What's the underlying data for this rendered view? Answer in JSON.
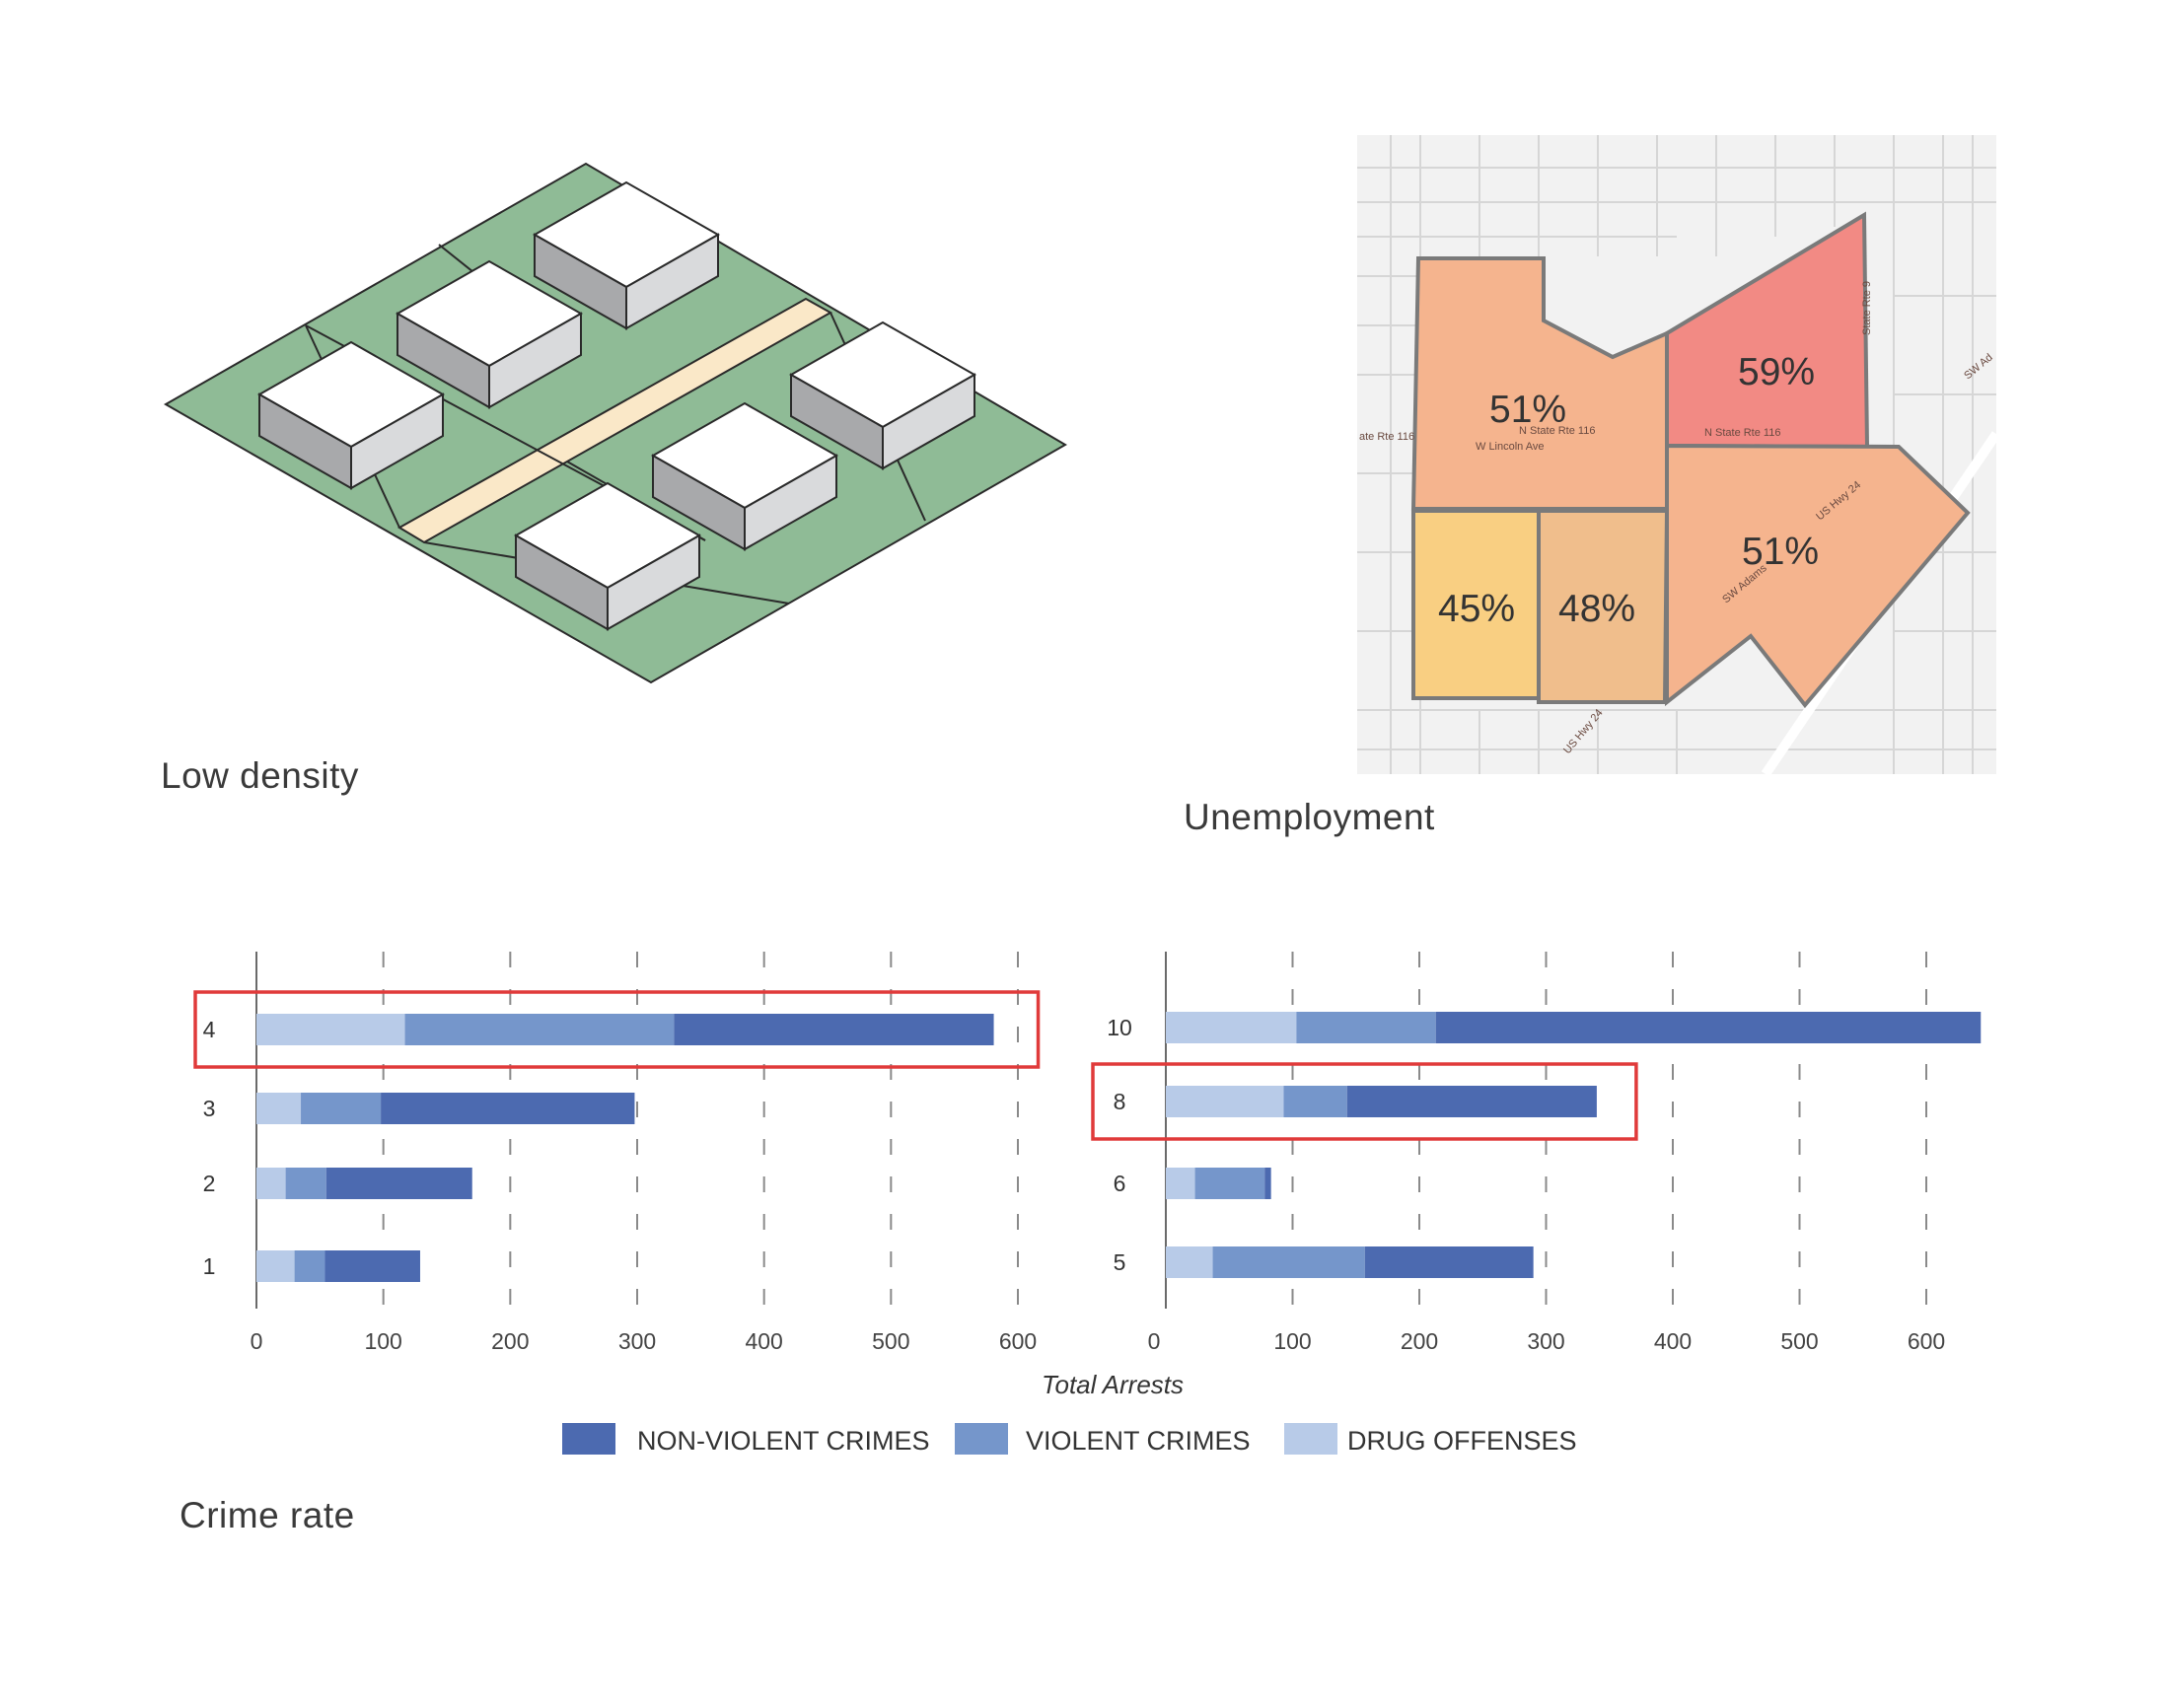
{
  "captions": {
    "density": "Low density",
    "unemployment": "Unemployment",
    "crime": "Crime rate"
  },
  "unemployment_map": {
    "zones": [
      {
        "value": "51%",
        "color": "#f5b48e"
      },
      {
        "value": "59%",
        "color": "#f28a84"
      },
      {
        "value": "51%",
        "color": "#f5b48e"
      },
      {
        "value": "45%",
        "color": "#f9cf82"
      },
      {
        "value": "48%",
        "color": "#f0be8c"
      }
    ],
    "road_labels": [
      "N State Rte 116",
      "W Lincoln Ave",
      "N State Rte 116",
      "US Hwy 24",
      "SW Adams",
      "US Hwy 24",
      "State Rte 9",
      "SW Ad",
      "ate Rte 116"
    ]
  },
  "chart_data": [
    {
      "type": "bar",
      "orientation": "horizontal",
      "stacked": true,
      "categories": [
        "4",
        "3",
        "2",
        "1"
      ],
      "series": [
        {
          "name": "DRUG OFFENSES",
          "values": [
            117,
            35,
            23,
            30
          ]
        },
        {
          "name": "VIOLENT CRIMES",
          "values": [
            212,
            63,
            32,
            24
          ]
        },
        {
          "name": "NON-VIOLENT CRIMES",
          "values": [
            252,
            200,
            115,
            75
          ]
        }
      ],
      "xlim": [
        0,
        620
      ],
      "xticks": [
        0,
        100,
        200,
        300,
        400,
        500,
        600
      ],
      "highlighted": [
        "4"
      ]
    },
    {
      "type": "bar",
      "orientation": "horizontal",
      "stacked": true,
      "categories": [
        "10",
        "8",
        "6",
        "5"
      ],
      "series": [
        {
          "name": "DRUG OFFENSES",
          "values": [
            103,
            93,
            23,
            37
          ]
        },
        {
          "name": "VIOLENT CRIMES",
          "values": [
            110,
            50,
            55,
            120
          ]
        },
        {
          "name": "NON-VIOLENT CRIMES",
          "values": [
            430,
            197,
            5,
            133
          ]
        }
      ],
      "xlim": [
        0,
        650
      ],
      "xticks": [
        0,
        100,
        200,
        300,
        400,
        500,
        600
      ],
      "highlighted": [
        "8"
      ]
    }
  ],
  "shared_axis": {
    "xlabel": "Total Arrests"
  },
  "legend": [
    {
      "label": "NON-VIOLENT CRIMES",
      "color": "#4c6ab0"
    },
    {
      "label": "VIOLENT CRIMES",
      "color": "#7596cb"
    },
    {
      "label": "DRUG OFFENSES",
      "color": "#b8cbe8"
    }
  ],
  "colors": {
    "drug": "#b8cbe8",
    "violent": "#7596cb",
    "nonviolent": "#4c6ab0",
    "highlight": "#e03a3a",
    "grass": "#8fbb96",
    "road": "#fae8c8"
  }
}
